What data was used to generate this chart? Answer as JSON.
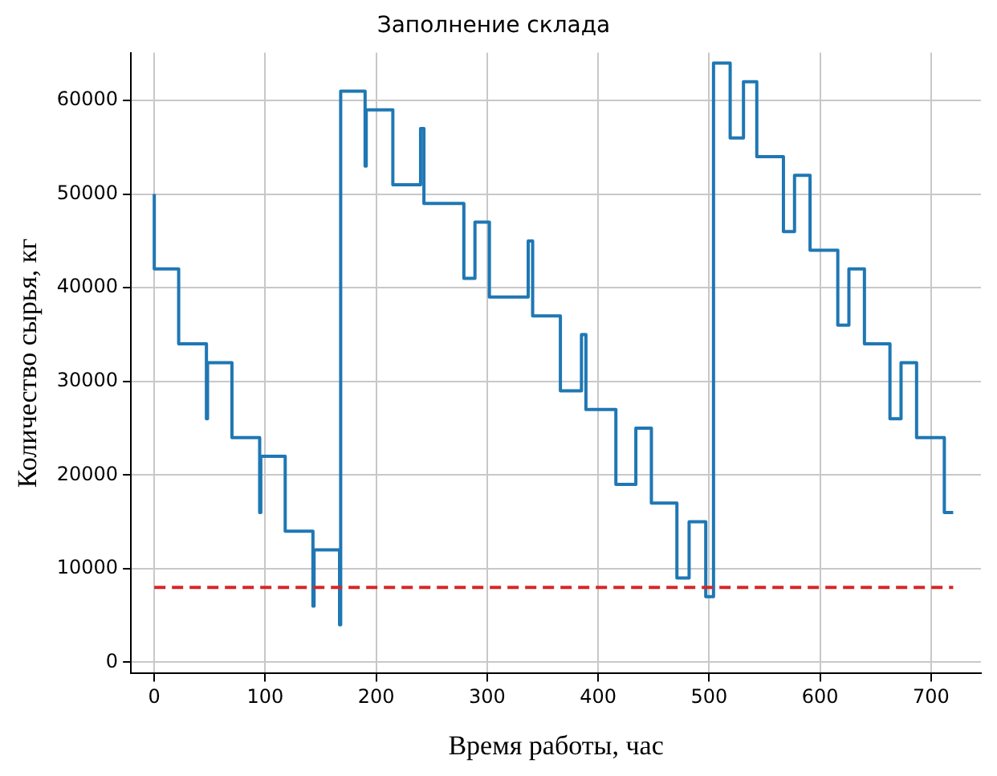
{
  "chart_data": {
    "type": "step",
    "title": "Заполнение склада",
    "xlabel": "Время работы, час",
    "ylabel": "Количество сырья, кг",
    "x": [
      0,
      0,
      22,
      47,
      48,
      70,
      95,
      96,
      118,
      143,
      144,
      167,
      168,
      190,
      191,
      215,
      240,
      243,
      279,
      289,
      302,
      337,
      341,
      366,
      385,
      389,
      416,
      434,
      448,
      471,
      482,
      497,
      504,
      519,
      531,
      543,
      567,
      577,
      591,
      616,
      626,
      640,
      663,
      673,
      687,
      712,
      720
    ],
    "series": [
      {
        "color": "#1f77b4",
        "values": [
          50000,
          42000,
          34000,
          26000,
          32000,
          24000,
          16000,
          22000,
          14000,
          6000,
          12000,
          4000,
          61000,
          53000,
          59000,
          51000,
          57000,
          49000,
          41000,
          47000,
          39000,
          45000,
          37000,
          29000,
          35000,
          27000,
          19000,
          25000,
          17000,
          9000,
          15000,
          7000,
          64000,
          56000,
          62000,
          54000,
          46000,
          52000,
          44000,
          36000,
          42000,
          34000,
          26000,
          32000,
          24000,
          16000,
          16000
        ]
      }
    ],
    "xlim": [
      -21,
      745
    ],
    "xticks": [
      0,
      100,
      200,
      300,
      400,
      500,
      600,
      700
    ],
    "ylim": [
      -1200,
      65100
    ],
    "yticks": [
      0,
      10000,
      20000,
      30000,
      40000,
      50000,
      60000
    ],
    "ref_lines": [
      {
        "axis": "y",
        "value": 8000,
        "color": "#d62728",
        "line_style": "dashed"
      }
    ],
    "grid": true,
    "legend": false,
    "marker": "none",
    "line_style": "solid"
  }
}
